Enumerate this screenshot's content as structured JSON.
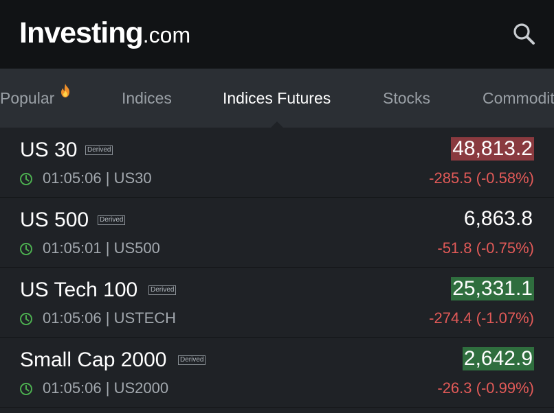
{
  "header": {
    "logo_main": "Investing",
    "logo_suffix": ".com",
    "search_icon": "search-icon"
  },
  "tabs": [
    {
      "label": "Popular",
      "icon": "fire-icon"
    },
    {
      "label": "Indices"
    },
    {
      "label": "Indices Futures",
      "active": true
    },
    {
      "label": "Stocks"
    },
    {
      "label": "Commodities"
    }
  ],
  "instruments": [
    {
      "name": "US 30",
      "badge": "Derived",
      "time": "01:05:06",
      "symbol": "US30",
      "meta": "01:05:06 | US30",
      "price": "48,813.2",
      "change": "-285.5 (-0.58%)",
      "flash": "down"
    },
    {
      "name": "US 500",
      "badge": "Derived",
      "time": "01:05:01",
      "symbol": "US500",
      "meta": "01:05:01 | US500",
      "price": "6,863.8",
      "change": "-51.8 (-0.75%)",
      "flash": "none"
    },
    {
      "name": "US Tech 100",
      "badge": "Derived",
      "time": "01:05:06",
      "symbol": "USTECH",
      "meta": "01:05:06 | USTECH",
      "price": "25,331.1",
      "change": "-274.4 (-1.07%)",
      "flash": "up"
    },
    {
      "name": "Small Cap 2000",
      "badge": "Derived",
      "time": "01:05:06",
      "symbol": "US2000",
      "meta": "01:05:06 | US2000",
      "price": "2,642.9",
      "change": "-26.3 (-0.99%)",
      "flash": "up"
    }
  ],
  "colors": {
    "header_bg": "#111315",
    "tabs_bg": "#2b2f34",
    "list_bg": "#1f2226",
    "negative": "#e25a58",
    "clock_green": "#4caf50",
    "flash_down": "#8a3a3f",
    "flash_up": "#2f6e3e"
  }
}
